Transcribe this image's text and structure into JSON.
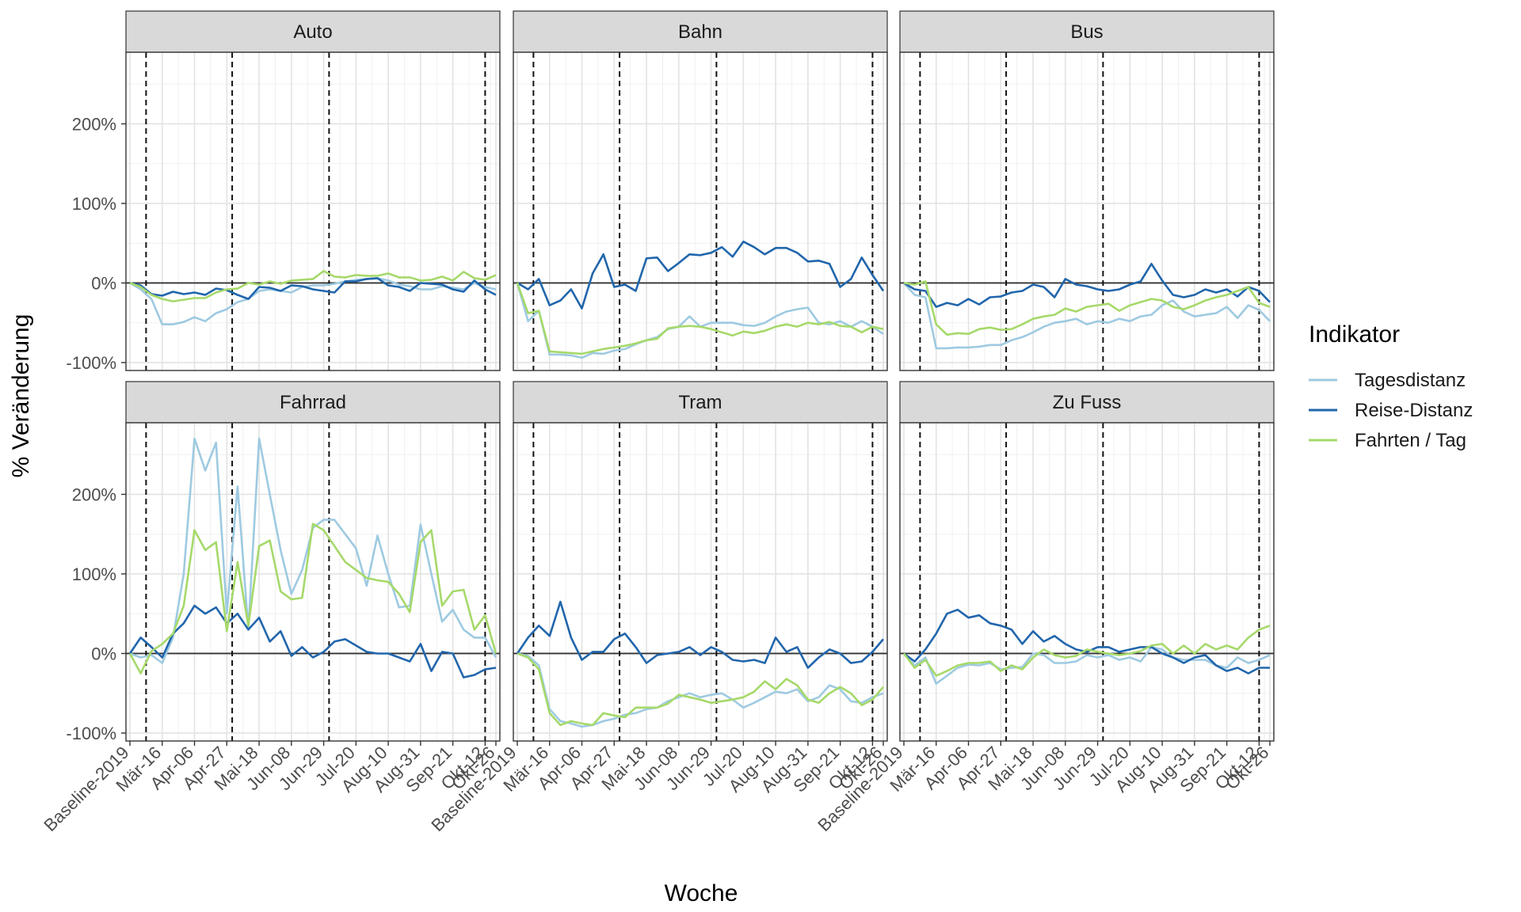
{
  "chart_data": {
    "type": "line",
    "xlabel": "Woche",
    "ylabel": "% Veränderung",
    "ylim": [
      -110,
      290
    ],
    "y_ticks": [
      -100,
      0,
      100,
      200
    ],
    "y_tick_labels": [
      "-100%",
      "0%",
      "100%",
      "200%"
    ],
    "x_tick_indices": [
      0,
      3,
      6,
      9,
      12,
      15,
      18,
      21,
      24,
      27,
      30,
      33,
      34
    ],
    "x_tick_labels": [
      "Baseline-2019",
      "Mär-16",
      "Apr-06",
      "Apr-27",
      "Mai-18",
      "Jun-08",
      "Jun-29",
      "Jul-20",
      "Aug-10",
      "Aug-31",
      "Sep-21",
      "Okt-12",
      "Okt-26"
    ],
    "x_count": 35,
    "vlines": [
      1.5,
      9.5,
      18.5,
      33
    ],
    "grid": true,
    "legend": {
      "title": "Indikator",
      "placement": "right",
      "entries": [
        "Tagesdistanz",
        "Reise-Distanz",
        "Fahrten / Tag"
      ]
    },
    "series_colors": {
      "Tagesdistanz": "#9ecae1",
      "Reise-Distanz": "#2166ac",
      "Fahrten / Tag": "#a6d96a"
    },
    "panels": [
      {
        "title": "Auto",
        "series": [
          {
            "name": "Tagesdistanz",
            "values": [
              0,
              -8,
              -20,
              -52,
              -52,
              -49,
              -43,
              -48,
              -38,
              -33,
              -24,
              -20,
              -10,
              -8,
              -10,
              -12,
              -5,
              -3,
              -3,
              -1,
              2,
              4,
              5,
              6,
              3,
              -2,
              -4,
              -8,
              -8,
              -4,
              -6,
              -8,
              0,
              -5,
              -8
            ]
          },
          {
            "name": "Reise-Distanz",
            "values": [
              0,
              -3,
              -14,
              -16,
              -11,
              -14,
              -12,
              -15,
              -7,
              -9,
              -15,
              -20,
              -5,
              -6,
              -10,
              -3,
              -4,
              -8,
              -10,
              -12,
              2,
              2,
              5,
              6,
              -3,
              -5,
              -10,
              0,
              -1,
              -2,
              -8,
              -11,
              3,
              -8,
              -15
            ]
          },
          {
            "name": "Fahrten / Tag",
            "values": [
              0,
              -5,
              -15,
              -20,
              -23,
              -21,
              -19,
              -19,
              -12,
              -8,
              -7,
              0,
              -2,
              2,
              -1,
              3,
              4,
              5,
              15,
              8,
              7,
              10,
              9,
              9,
              12,
              7,
              7,
              3,
              4,
              8,
              3,
              14,
              6,
              4,
              10
            ]
          }
        ]
      },
      {
        "title": "Bahn",
        "series": [
          {
            "name": "Tagesdistanz",
            "values": [
              0,
              -48,
              -35,
              -90,
              -90,
              -91,
              -94,
              -88,
              -89,
              -85,
              -83,
              -77,
              -72,
              -68,
              -58,
              -55,
              -42,
              -55,
              -50,
              -50,
              -50,
              -53,
              -54,
              -50,
              -42,
              -36,
              -33,
              -31,
              -50,
              -52,
              -48,
              -55,
              -48,
              -55,
              -64
            ]
          },
          {
            "name": "Reise-Distanz",
            "values": [
              0,
              -8,
              5,
              -28,
              -22,
              -8,
              -32,
              12,
              36,
              -5,
              -2,
              -10,
              31,
              32,
              15,
              25,
              36,
              35,
              38,
              45,
              33,
              52,
              45,
              36,
              44,
              44,
              38,
              27,
              28,
              24,
              -5,
              5,
              32,
              10,
              -10
            ]
          },
          {
            "name": "Fahrten / Tag",
            "values": [
              0,
              -38,
              -35,
              -86,
              -87,
              -88,
              -89,
              -86,
              -83,
              -81,
              -79,
              -76,
              -72,
              -70,
              -57,
              -55,
              -54,
              -55,
              -58,
              -62,
              -66,
              -61,
              -63,
              -60,
              -55,
              -52,
              -55,
              -50,
              -52,
              -49,
              -54,
              -55,
              -62,
              -55,
              -58
            ]
          }
        ]
      },
      {
        "title": "Bus",
        "series": [
          {
            "name": "Tagesdistanz",
            "values": [
              0,
              -15,
              -18,
              -82,
              -82,
              -81,
              -81,
              -80,
              -78,
              -78,
              -72,
              -68,
              -62,
              -55,
              -50,
              -48,
              -45,
              -52,
              -48,
              -50,
              -45,
              -48,
              -42,
              -40,
              -28,
              -22,
              -36,
              -42,
              -40,
              -38,
              -30,
              -44,
              -28,
              -34,
              -48
            ]
          },
          {
            "name": "Reise-Distanz",
            "values": [
              0,
              -8,
              -10,
              -30,
              -25,
              -28,
              -20,
              -27,
              -18,
              -17,
              -12,
              -10,
              -2,
              -5,
              -18,
              5,
              -2,
              -4,
              -8,
              -10,
              -8,
              -2,
              2,
              24,
              3,
              -15,
              -18,
              -15,
              -8,
              -12,
              -8,
              -17,
              -5,
              -10,
              -24
            ]
          },
          {
            "name": "Fahrten / Tag",
            "values": [
              0,
              -2,
              2,
              -52,
              -65,
              -63,
              -64,
              -58,
              -56,
              -59,
              -58,
              -52,
              -45,
              -42,
              -40,
              -32,
              -36,
              -30,
              -28,
              -26,
              -35,
              -28,
              -24,
              -20,
              -22,
              -30,
              -33,
              -28,
              -22,
              -18,
              -15,
              -10,
              -5,
              -25,
              -30
            ]
          }
        ]
      },
      {
        "title": "Fahrrad",
        "series": [
          {
            "name": "Tagesdistanz",
            "values": [
              0,
              -5,
              -2,
              -12,
              20,
              100,
              270,
              230,
              265,
              50,
              210,
              30,
              270,
              200,
              130,
              75,
              105,
              158,
              168,
              168,
              150,
              132,
              85,
              148,
              100,
              58,
              60,
              162,
              100,
              40,
              55,
              30,
              20,
              20,
              -5
            ]
          },
          {
            "name": "Reise-Distanz",
            "values": [
              0,
              20,
              8,
              -5,
              25,
              38,
              60,
              50,
              58,
              38,
              50,
              30,
              45,
              15,
              28,
              -3,
              8,
              -5,
              2,
              15,
              18,
              10,
              2,
              0,
              0,
              -5,
              -10,
              12,
              -22,
              2,
              0,
              -30,
              -27,
              -20,
              -18
            ]
          },
          {
            "name": "Fahrten / Tag",
            "values": [
              0,
              -25,
              3,
              12,
              25,
              60,
              155,
              130,
              140,
              28,
              115,
              35,
              135,
              142,
              78,
              68,
              70,
              163,
              155,
              135,
              115,
              105,
              95,
              92,
              90,
              75,
              52,
              140,
              155,
              60,
              78,
              80,
              30,
              48,
              0
            ]
          }
        ]
      },
      {
        "title": "Tram",
        "series": [
          {
            "name": "Tagesdistanz",
            "values": [
              0,
              -3,
              -15,
              -70,
              -85,
              -88,
              -92,
              -90,
              -85,
              -82,
              -77,
              -75,
              -70,
              -68,
              -60,
              -55,
              -50,
              -55,
              -52,
              -50,
              -58,
              -68,
              -62,
              -55,
              -48,
              -50,
              -45,
              -60,
              -55,
              -40,
              -45,
              -60,
              -62,
              -55,
              -50
            ]
          },
          {
            "name": "Reise-Distanz",
            "values": [
              0,
              20,
              35,
              22,
              65,
              20,
              -8,
              2,
              2,
              18,
              25,
              8,
              -12,
              -2,
              0,
              2,
              8,
              -2,
              8,
              2,
              -8,
              -10,
              -8,
              -12,
              20,
              2,
              8,
              -18,
              -5,
              5,
              0,
              -12,
              -10,
              2,
              18
            ]
          },
          {
            "name": "Fahrten / Tag",
            "values": [
              0,
              -5,
              -20,
              -75,
              -90,
              -85,
              -88,
              -90,
              -75,
              -78,
              -80,
              -68,
              -68,
              -68,
              -63,
              -52,
              -55,
              -58,
              -62,
              -60,
              -58,
              -55,
              -48,
              -35,
              -45,
              -32,
              -40,
              -58,
              -62,
              -50,
              -42,
              -50,
              -65,
              -58,
              -42
            ]
          }
        ]
      },
      {
        "title": "Zu Fuss",
        "series": [
          {
            "name": "Tagesdistanz",
            "values": [
              0,
              -15,
              -5,
              -38,
              -28,
              -18,
              -14,
              -15,
              -12,
              -20,
              -18,
              -17,
              0,
              -2,
              -12,
              -12,
              -10,
              -2,
              -5,
              -2,
              -8,
              -5,
              -10,
              8,
              5,
              -5,
              -8,
              -8,
              -8,
              -15,
              -18,
              -5,
              -12,
              -8,
              -2
            ]
          },
          {
            "name": "Reise-Distanz",
            "values": [
              0,
              -10,
              5,
              25,
              50,
              55,
              45,
              48,
              38,
              35,
              30,
              12,
              28,
              15,
              22,
              12,
              5,
              2,
              8,
              8,
              2,
              5,
              8,
              8,
              0,
              -5,
              -12,
              -5,
              -2,
              -15,
              -22,
              -18,
              -25,
              -18,
              -18
            ]
          },
          {
            "name": "Fahrten / Tag",
            "values": [
              0,
              -18,
              -8,
              -28,
              -22,
              -15,
              -12,
              -12,
              -10,
              -22,
              -15,
              -20,
              -5,
              5,
              -2,
              -5,
              -3,
              5,
              2,
              0,
              -2,
              0,
              3,
              10,
              12,
              0,
              10,
              0,
              12,
              5,
              10,
              5,
              20,
              30,
              35
            ]
          }
        ]
      }
    ]
  }
}
